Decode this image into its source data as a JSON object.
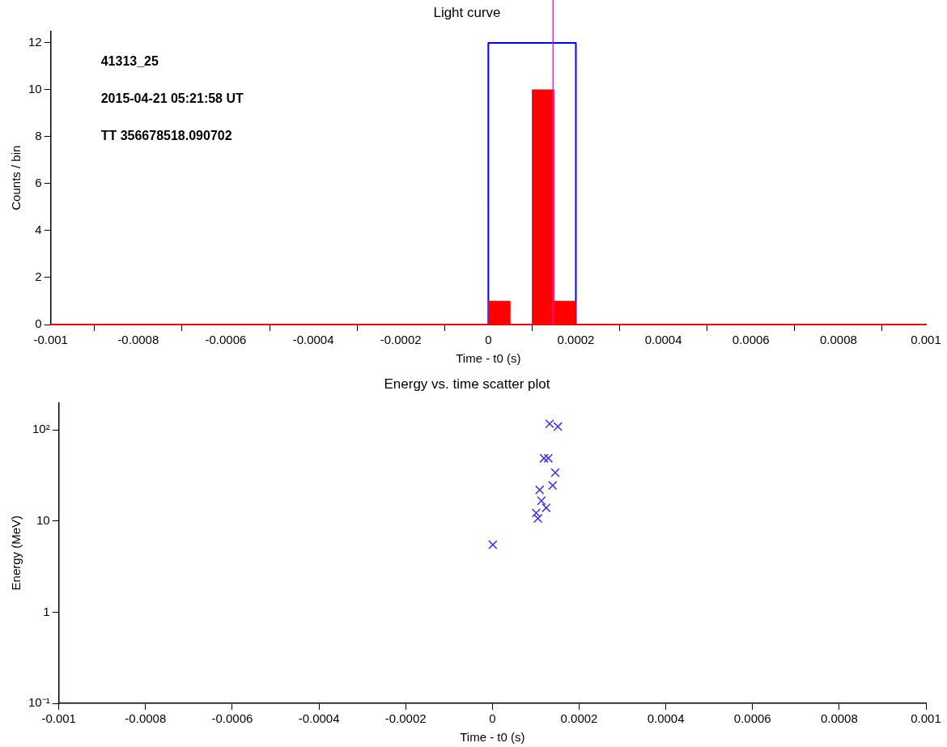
{
  "chart_data": [
    {
      "type": "histogram",
      "title": "Light curve",
      "xlabel": "Time - t0 (s)",
      "ylabel": "Counts / bin",
      "xlim": [
        -0.001,
        0.001
      ],
      "xticks": [
        -0.001,
        -0.0008,
        -0.0006,
        -0.0004,
        -0.0002,
        0,
        0.0002,
        0.0004,
        0.0006,
        0.0008,
        0.001
      ],
      "ylim": [
        0,
        12.5
      ],
      "yticks": [
        0,
        2,
        4,
        6,
        8,
        10,
        12
      ],
      "grid": false,
      "legend": false,
      "annotations": [
        "41313_25",
        "2015-04-21 05:21:58 UT",
        "TT 356678518.090702"
      ],
      "ref_lines": [
        {
          "axis": "x",
          "value": 0.000148,
          "color": "#ff00ff"
        }
      ],
      "series": [
        {
          "type": "histogram",
          "color": "#ff0000",
          "bins": [
            -0.001,
            -0.00095,
            -0.0009,
            -0.00085,
            -0.0008,
            -0.00075,
            -0.0007,
            -0.00065,
            -0.0006,
            -0.00055,
            -0.0005,
            -0.00045,
            -0.0004,
            -0.00035,
            -0.0003,
            -0.00025,
            -0.0002,
            -0.00015,
            -0.0001,
            -5e-05,
            0,
            5e-05,
            0.0001,
            0.00015,
            0.0002,
            0.00025,
            0.0003,
            0.00035,
            0.0004,
            0.00045,
            0.0005,
            0.00055,
            0.0006,
            0.00065,
            0.0007,
            0.00075,
            0.0008,
            0.00085,
            0.0009,
            0.00095,
            0.001
          ],
          "values": [
            0,
            0,
            0,
            0,
            0,
            0,
            0,
            0,
            0,
            0,
            0,
            0,
            0,
            0,
            0,
            0,
            0,
            0,
            0,
            0,
            1,
            0,
            10,
            1,
            0,
            0,
            0,
            0,
            0,
            0,
            0,
            0,
            0,
            0,
            0,
            0,
            0,
            0,
            0,
            0
          ]
        },
        {
          "type": "line",
          "color": "#0000ff",
          "x": [
            0,
            0,
            0.0002,
            0.0002
          ],
          "values": [
            0,
            12,
            12,
            0
          ]
        }
      ]
    },
    {
      "type": "scatter",
      "title": "Energy vs. time scatter plot",
      "xlabel": "Time - t0 (s)",
      "ylabel": "Energy (MeV)",
      "log": "y",
      "xlim": [
        -0.001,
        0.001
      ],
      "xticks": [
        -0.001,
        -0.0008,
        -0.0006,
        -0.0004,
        -0.0002,
        0,
        0.0002,
        0.0004,
        0.0006,
        0.0008,
        0.001
      ],
      "ylim": [
        0.1,
        200
      ],
      "yticks": [
        {
          "value": 0.1,
          "label": "10⁻¹"
        },
        1,
        10,
        {
          "value": 100,
          "label": "10²"
        }
      ],
      "grid": false,
      "legend": false,
      "marker": "cross",
      "series": [
        {
          "color": "#3333ff",
          "x": [
            0.000132,
            0.000151,
            0.000119,
            0.000129,
            0.000145,
            0.000139,
            0.000109,
            0.000113,
            0.000124,
            0.000101,
            0.000105,
            1e-06
          ],
          "values": [
            117,
            109,
            49,
            49,
            34,
            24.6,
            22,
            16.7,
            14,
            12.3,
            10.7,
            5.5
          ]
        }
      ]
    }
  ]
}
